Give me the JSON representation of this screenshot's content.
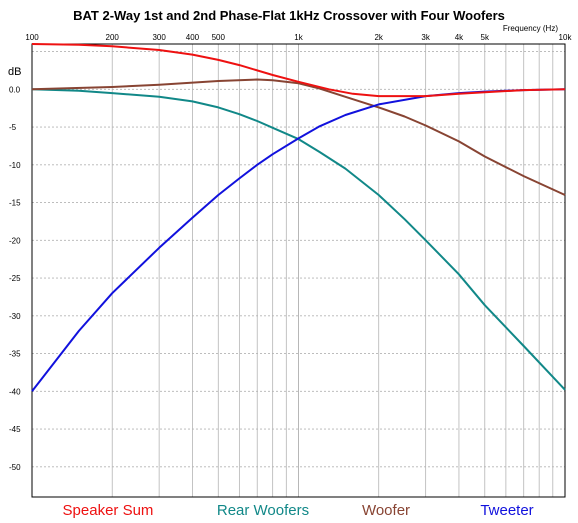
{
  "chart_data": {
    "type": "line",
    "title": "BAT 2-Way 1st and 2nd Phase-Flat 1kHz Crossover with Four Woofers",
    "xlabel": "Frequency  (Hz)",
    "ylabel": "dB",
    "x_scale": "log",
    "xlim": [
      100,
      10000
    ],
    "ylim": [
      -54,
      6
    ],
    "grid": true,
    "x_ticks": [
      {
        "value": 100,
        "label": "100"
      },
      {
        "value": 200,
        "label": "200"
      },
      {
        "value": 300,
        "label": "300"
      },
      {
        "value": 400,
        "label": "400"
      },
      {
        "value": 500,
        "label": "500"
      },
      {
        "value": 1000,
        "label": "1k"
      },
      {
        "value": 2000,
        "label": "2k"
      },
      {
        "value": 3000,
        "label": "3k"
      },
      {
        "value": 4000,
        "label": "4k"
      },
      {
        "value": 5000,
        "label": "5k"
      },
      {
        "value": 10000,
        "label": "10k"
      }
    ],
    "y_ticks": [
      {
        "value": 0,
        "label": "0.0"
      },
      {
        "value": -5,
        "label": "-5"
      },
      {
        "value": -10,
        "label": "-10"
      },
      {
        "value": -15,
        "label": "-15"
      },
      {
        "value": -20,
        "label": "-20"
      },
      {
        "value": -25,
        "label": "-25"
      },
      {
        "value": -30,
        "label": "-30"
      },
      {
        "value": -35,
        "label": "-35"
      },
      {
        "value": -40,
        "label": "-40"
      },
      {
        "value": -45,
        "label": "-45"
      },
      {
        "value": -50,
        "label": "-50"
      }
    ],
    "legend_position": "bottom",
    "series": [
      {
        "name": "Speaker Sum",
        "color": "#ee1111",
        "x": [
          100,
          150,
          200,
          300,
          400,
          500,
          600,
          800,
          1000,
          1300,
          1600,
          2000,
          3000,
          4000,
          5000,
          7000,
          10000
        ],
        "y": [
          6.0,
          5.9,
          5.7,
          5.2,
          4.6,
          3.9,
          3.2,
          1.9,
          1.0,
          0.0,
          -0.6,
          -0.9,
          -0.9,
          -0.6,
          -0.4,
          -0.1,
          0.0
        ]
      },
      {
        "name": "Rear Woofers",
        "color": "#118888",
        "x": [
          100,
          150,
          200,
          300,
          400,
          500,
          600,
          700,
          800,
          1000,
          1200,
          1500,
          2000,
          2500,
          3000,
          4000,
          5000,
          7000,
          10000
        ],
        "y": [
          0.0,
          -0.2,
          -0.5,
          -1.0,
          -1.6,
          -2.4,
          -3.3,
          -4.2,
          -5.1,
          -6.6,
          -8.3,
          -10.5,
          -14.0,
          -17.2,
          -20.0,
          -24.5,
          -28.6,
          -34.0,
          -39.8
        ]
      },
      {
        "name": "Woofer",
        "color": "#884433",
        "x": [
          100,
          200,
          300,
          500,
          700,
          800,
          1000,
          1200,
          1500,
          2000,
          2500,
          3000,
          4000,
          5000,
          7000,
          10000
        ],
        "y": [
          0.0,
          0.3,
          0.6,
          1.1,
          1.3,
          1.2,
          0.8,
          0.1,
          -1.0,
          -2.4,
          -3.6,
          -4.8,
          -6.9,
          -8.9,
          -11.5,
          -14.0
        ]
      },
      {
        "name": "Tweeter",
        "color": "#1111dd",
        "x": [
          100,
          150,
          200,
          300,
          400,
          500,
          600,
          700,
          800,
          1000,
          1200,
          1500,
          2000,
          3000,
          4000,
          5000,
          7000,
          10000
        ],
        "y": [
          -40.0,
          -32.0,
          -27.0,
          -21.0,
          -17.0,
          -14.0,
          -11.8,
          -10.0,
          -8.6,
          -6.5,
          -4.9,
          -3.4,
          -2.0,
          -0.9,
          -0.5,
          -0.3,
          -0.1,
          0.0
        ]
      }
    ]
  }
}
